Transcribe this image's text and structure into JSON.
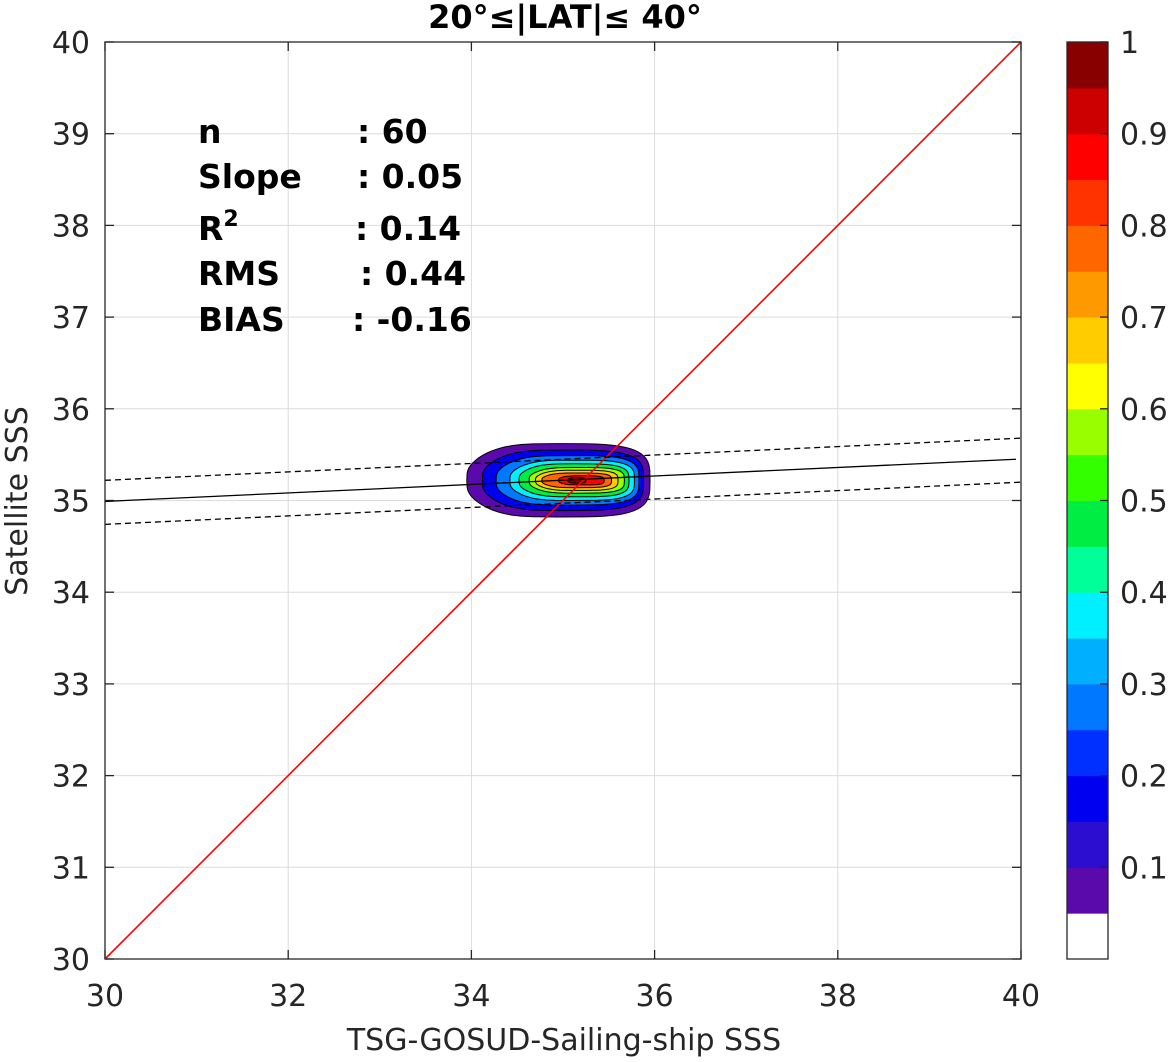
{
  "chart_data": {
    "type": "heatmap",
    "title": "20°≤|LAT|≤ 40°",
    "xlabel": "TSG-GOSUD-Sailing-ship SSS",
    "ylabel": "Satellite SSS",
    "xlim": [
      30,
      40
    ],
    "ylim": [
      30,
      40
    ],
    "xticks": [
      "30",
      "32",
      "34",
      "36",
      "38",
      "40"
    ],
    "yticks": [
      "30",
      "31",
      "32",
      "33",
      "34",
      "35",
      "36",
      "37",
      "38",
      "39",
      "40"
    ],
    "grid": true,
    "stats": [
      {
        "label": "n",
        "value": ": 60"
      },
      {
        "label": "Slope",
        "value": ": 0.05"
      },
      {
        "label": "R",
        "sup": "2",
        "value": ": 0.14"
      },
      {
        "label": "RMS",
        "value": ": 0.44"
      },
      {
        "label": "BIAS",
        "value": ": -0.16"
      }
    ],
    "identity_line": {
      "x": [
        30,
        40
      ],
      "y": [
        30,
        40
      ],
      "color": "#ff0000"
    },
    "regression_line": {
      "x": [
        30,
        40
      ],
      "y": [
        34.99,
        35.45
      ],
      "color": "#000000"
    },
    "confidence_upper": {
      "x": [
        30,
        40
      ],
      "y": [
        35.22,
        35.68
      ]
    },
    "confidence_lower": {
      "x": [
        30,
        40
      ],
      "y": [
        34.74,
        35.2
      ]
    },
    "density_center": {
      "x": 35.1,
      "y": 35.22
    },
    "density_levels": [
      {
        "level": 0.05,
        "rx": 1.0,
        "ry": 0.4,
        "cx": 34.95
      },
      {
        "level": 0.15,
        "rx": 0.88,
        "ry": 0.33,
        "cx": 35.0
      },
      {
        "level": 0.25,
        "rx": 0.78,
        "ry": 0.27,
        "cx": 35.05
      },
      {
        "level": 0.35,
        "rx": 0.68,
        "ry": 0.22,
        "cx": 35.1
      },
      {
        "level": 0.45,
        "rx": 0.6,
        "ry": 0.18,
        "cx": 35.12
      },
      {
        "level": 0.55,
        "rx": 0.52,
        "ry": 0.14,
        "cx": 35.15
      },
      {
        "level": 0.65,
        "rx": 0.45,
        "ry": 0.11,
        "cx": 35.15
      },
      {
        "level": 0.75,
        "rx": 0.38,
        "ry": 0.08,
        "cx": 35.15
      },
      {
        "level": 0.85,
        "rx": 0.25,
        "ry": 0.05,
        "cx": 35.2
      },
      {
        "level": 0.95,
        "rx": 0.1,
        "ry": 0.03,
        "cx": 35.15
      }
    ],
    "colorbar": {
      "range": [
        0,
        1
      ],
      "ticks": [
        "0.1",
        "0.2",
        "0.3",
        "0.4",
        "0.5",
        "0.6",
        "0.7",
        "0.8",
        "0.9",
        "1"
      ],
      "tick_values": [
        0.1,
        0.2,
        0.3,
        0.4,
        0.5,
        0.6,
        0.7,
        0.8,
        0.9,
        1.0
      ],
      "colors": [
        "#ffffff",
        "#5a0aab",
        "#2b0ed0",
        "#0000f0",
        "#0030ff",
        "#0078ff",
        "#00b0ff",
        "#00f0ff",
        "#00ff99",
        "#00ee44",
        "#33ff00",
        "#99ff00",
        "#ffff00",
        "#ffcc00",
        "#ff9900",
        "#ff6600",
        "#ff3300",
        "#ff0000",
        "#cc0000",
        "#880000"
      ]
    }
  }
}
